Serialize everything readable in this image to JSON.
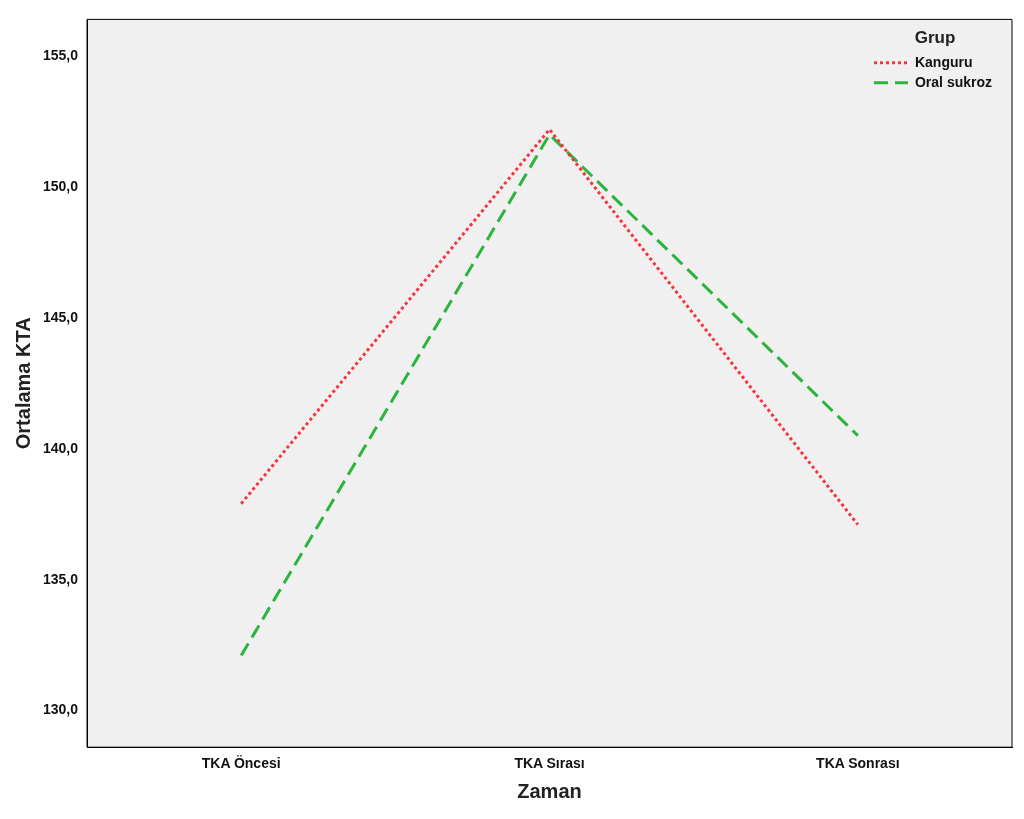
{
  "chart_data": {
    "type": "line",
    "xlabel": "Zaman",
    "ylabel": "Ortalama KTA",
    "legend_title": "Grup",
    "legend": "top right",
    "grid": false,
    "marker": "none",
    "categories": [
      "TKA Öncesi",
      "TKA Sırası",
      "TKA Sonrası"
    ],
    "ylim": [
      128.6,
      156.4
    ],
    "yticks": [
      {
        "value": 130,
        "label": "130,0"
      },
      {
        "value": 135,
        "label": "135,0"
      },
      {
        "value": 140,
        "label": "140,0"
      },
      {
        "value": 145,
        "label": "145,0"
      },
      {
        "value": 150,
        "label": "150,0"
      },
      {
        "value": 155,
        "label": "155,0"
      }
    ],
    "series": [
      {
        "name": "Kanguru",
        "color": "#f8333c",
        "line_style": "dotted",
        "values": [
          137.9,
          152.2,
          137.1
        ]
      },
      {
        "name": "Oral sukroz",
        "color": "#2cb43c",
        "line_style": "dashed",
        "values": [
          132.1,
          152.0,
          140.5
        ]
      }
    ]
  }
}
